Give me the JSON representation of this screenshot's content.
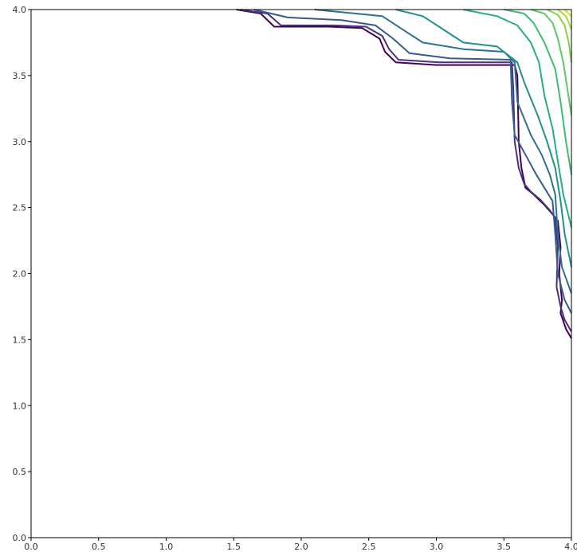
{
  "chart_data": {
    "type": "line",
    "plot_kind": "contour",
    "title": "",
    "xlabel": "",
    "ylabel": "",
    "xlim": [
      0.0,
      4.0
    ],
    "ylim": [
      0.0,
      4.0
    ],
    "xticks": [
      "0.0",
      "0.5",
      "1.0",
      "1.5",
      "2.0",
      "2.5",
      "3.0",
      "3.5",
      "4.0"
    ],
    "yticks": [
      "0.0",
      "0.5",
      "1.0",
      "1.5",
      "2.0",
      "2.5",
      "3.0",
      "3.5",
      "4.0"
    ],
    "grid": false,
    "legend": "none",
    "colormap": "viridis",
    "series": [
      {
        "color": "#440154",
        "x": [
          1.52,
          1.7,
          1.8,
          2.2,
          2.45,
          2.58,
          2.62,
          2.7,
          3.0,
          3.58,
          3.6,
          3.61,
          3.63,
          3.66,
          3.72,
          3.8,
          3.86,
          3.9,
          3.92,
          3.91,
          3.93,
          3.92,
          3.96,
          4.0
        ],
        "y": [
          4.0,
          3.97,
          3.87,
          3.87,
          3.86,
          3.78,
          3.68,
          3.6,
          3.58,
          3.58,
          3.5,
          3.0,
          2.8,
          2.65,
          2.6,
          2.52,
          2.45,
          2.4,
          2.2,
          2.0,
          1.8,
          1.7,
          1.58,
          1.51
        ]
      },
      {
        "color": "#46327e",
        "x": [
          1.55,
          1.75,
          1.85,
          2.25,
          2.48,
          2.6,
          2.65,
          2.72,
          3.02,
          3.56,
          3.57,
          3.58,
          3.61,
          3.65,
          3.7,
          3.77,
          3.84,
          3.88,
          3.9,
          3.89,
          3.92,
          3.95,
          4.0
        ],
        "y": [
          4.0,
          3.97,
          3.88,
          3.88,
          3.87,
          3.8,
          3.7,
          3.62,
          3.6,
          3.6,
          3.4,
          3.0,
          2.8,
          2.68,
          2.62,
          2.56,
          2.48,
          2.42,
          2.2,
          1.9,
          1.75,
          1.65,
          1.56
        ]
      },
      {
        "color": "#365c8d",
        "x": [
          1.65,
          1.9,
          2.3,
          2.55,
          2.68,
          2.8,
          3.1,
          3.55,
          3.56,
          3.58,
          3.66,
          3.74,
          3.8,
          3.86,
          3.88,
          3.9,
          3.95,
          4.0
        ],
        "y": [
          4.0,
          3.94,
          3.92,
          3.88,
          3.78,
          3.67,
          3.63,
          3.62,
          3.3,
          3.05,
          2.9,
          2.75,
          2.65,
          2.55,
          2.3,
          2.0,
          1.8,
          1.7
        ]
      },
      {
        "color": "#2c728e",
        "x": [
          2.1,
          2.6,
          2.75,
          2.9,
          3.2,
          3.5,
          3.58,
          3.6,
          3.7,
          3.78,
          3.84,
          3.88,
          3.9,
          3.93,
          4.0
        ],
        "y": [
          4.0,
          3.95,
          3.85,
          3.75,
          3.7,
          3.68,
          3.6,
          3.3,
          3.05,
          2.9,
          2.75,
          2.6,
          2.3,
          2.05,
          1.85
        ]
      },
      {
        "color": "#21918c",
        "x": [
          2.7,
          2.9,
          3.05,
          3.2,
          3.45,
          3.6,
          3.65,
          3.75,
          3.82,
          3.88,
          3.92,
          3.95,
          4.0
        ],
        "y": [
          4.0,
          3.95,
          3.85,
          3.75,
          3.72,
          3.6,
          3.45,
          3.2,
          3.0,
          2.8,
          2.55,
          2.3,
          2.05
        ]
      },
      {
        "color": "#28ae80",
        "x": [
          3.2,
          3.45,
          3.6,
          3.7,
          3.76,
          3.8,
          3.86,
          3.9,
          3.94,
          4.0
        ],
        "y": [
          4.0,
          3.95,
          3.88,
          3.75,
          3.6,
          3.35,
          3.1,
          2.85,
          2.6,
          2.35
        ]
      },
      {
        "color": "#3fbc73",
        "x": [
          3.5,
          3.65,
          3.72,
          3.8,
          3.88,
          3.92,
          3.96,
          4.0
        ],
        "y": [
          4.0,
          3.97,
          3.9,
          3.75,
          3.55,
          3.3,
          3.0,
          2.75
        ]
      },
      {
        "color": "#5ec962",
        "x": [
          3.7,
          3.8,
          3.86,
          3.9,
          3.94,
          3.97,
          4.0
        ],
        "y": [
          4.0,
          3.97,
          3.9,
          3.78,
          3.6,
          3.4,
          3.2
        ]
      },
      {
        "color": "#84d44b",
        "x": [
          3.82,
          3.9,
          3.95,
          3.98,
          4.0
        ],
        "y": [
          4.0,
          3.96,
          3.88,
          3.75,
          3.6
        ]
      },
      {
        "color": "#addc30",
        "x": [
          3.9,
          3.96,
          4.0
        ],
        "y": [
          4.0,
          3.95,
          3.85
        ]
      },
      {
        "color": "#d8e219",
        "x": [
          3.95,
          4.0
        ],
        "y": [
          4.0,
          3.95
        ]
      }
    ]
  }
}
